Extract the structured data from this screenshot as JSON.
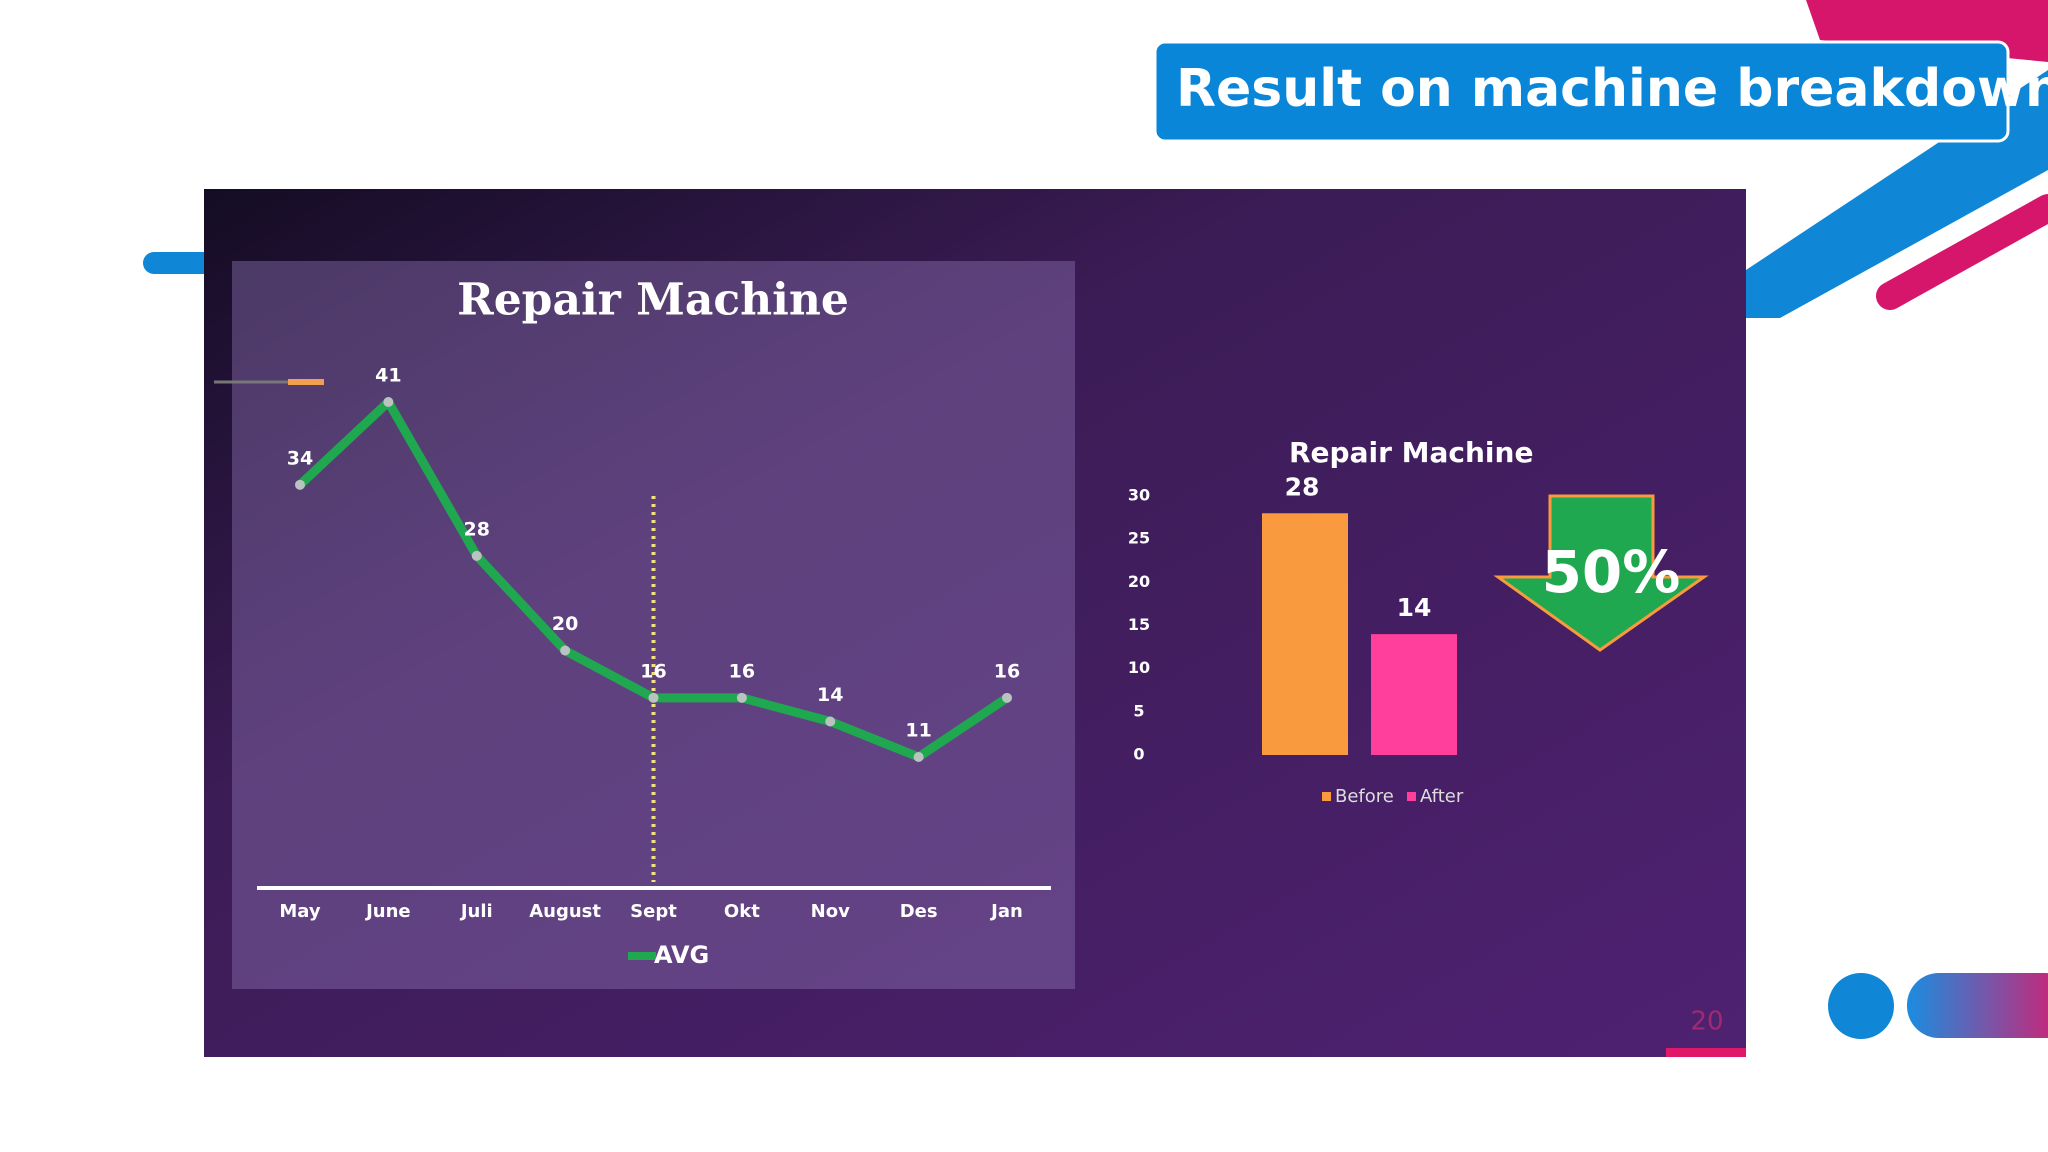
{
  "header": {
    "title": "Result on machine breakdown"
  },
  "page_number": "20",
  "chart_data": [
    {
      "type": "line",
      "title": "Repair Machine",
      "categories": [
        "May",
        "June",
        "Juli",
        "August",
        "Sept",
        "Okt",
        "Nov",
        "Des",
        "Jan"
      ],
      "series": [
        {
          "name": "AVG",
          "color": "#1fa84f",
          "values": [
            34,
            41,
            28,
            20,
            16,
            16,
            14,
            11,
            16
          ]
        }
      ],
      "reference_line": {
        "x": "Sept",
        "color": "#f3e27a",
        "style": "dotted"
      }
    },
    {
      "type": "bar",
      "title": "Repair Machine",
      "series": [
        {
          "name": "Before",
          "color": "#f99a3f",
          "values": [
            28
          ]
        },
        {
          "name": "After",
          "color": "#ff3f9b",
          "values": [
            14
          ]
        }
      ],
      "ylim": [
        0,
        30
      ],
      "yticks": [
        0,
        5,
        10,
        15,
        20,
        25,
        30
      ],
      "annotation": "50%"
    }
  ]
}
